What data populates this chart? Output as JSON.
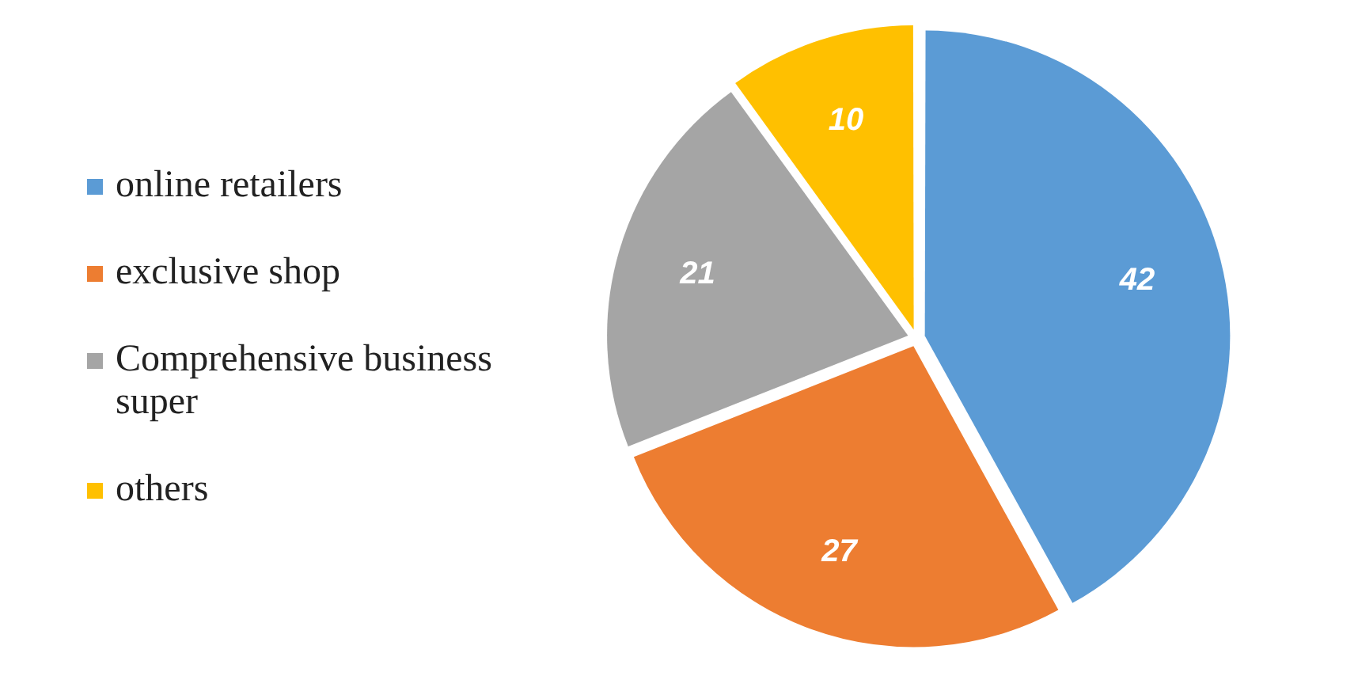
{
  "chart_data": {
    "type": "pie",
    "categories": [
      "online retailers",
      "exclusive shop",
      "Comprehensive business super",
      "others"
    ],
    "values": [
      42,
      27,
      21,
      10
    ],
    "colors": [
      "#5b9bd5",
      "#ed7d31",
      "#a5a5a5",
      "#ffc000"
    ],
    "data_labels": true,
    "legend": "left"
  }
}
